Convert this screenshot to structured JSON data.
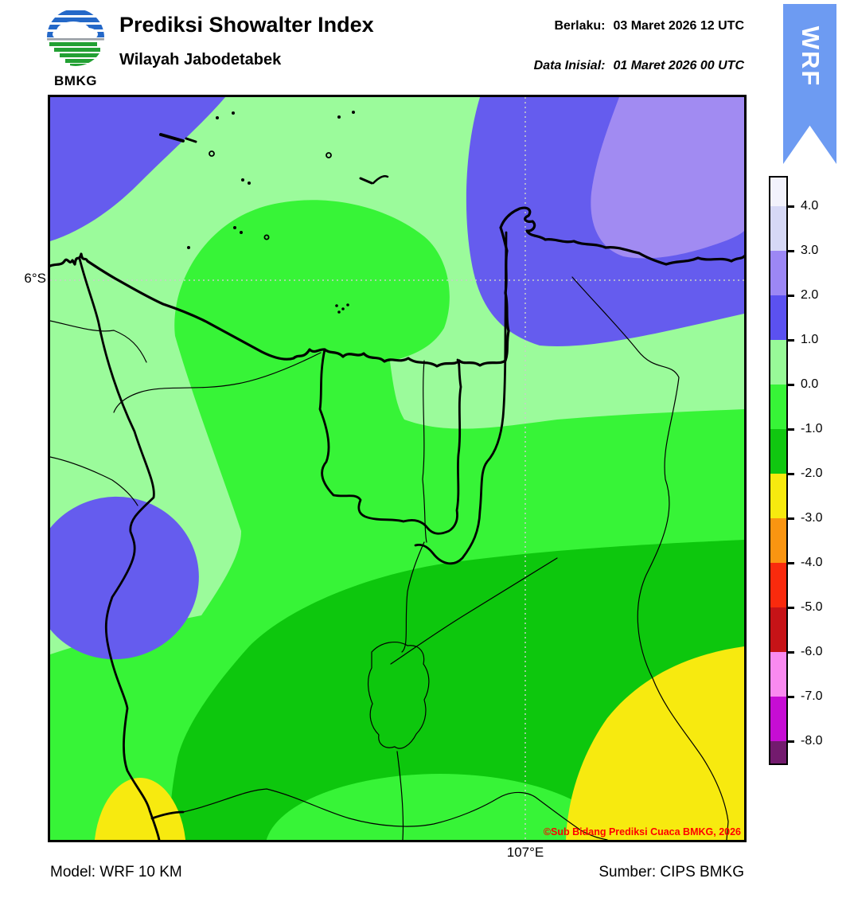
{
  "header": {
    "logo_text": "BMKG",
    "title": "Prediksi Showalter Index",
    "subtitle": "Wilayah Jabodetabek",
    "valid_label": "Berlaku:",
    "valid_value": "03 Maret 2026 12 UTC",
    "init_label": "Data Inisial:",
    "init_value": "01 Maret 2026 00 UTC"
  },
  "ribbon": {
    "text": "WRF",
    "color": "#6D9BF2"
  },
  "map": {
    "lat_label": "6°S",
    "lon_label": "107°E",
    "copyright": "©Sub Bidang Prediksi Cuaca BMKG, 2026",
    "copyright_color": "#FF0000"
  },
  "footer": {
    "model": "Model: WRF 10 KM",
    "source": "Sumber: CIPS BMKG"
  },
  "colorbar": {
    "tick_labels": [
      "4.0",
      "3.0",
      "2.0",
      "1.0",
      "0.0",
      "-1.0",
      "-2.0",
      "-3.0",
      "-4.0",
      "-5.0",
      "-6.0",
      "-7.0",
      "-8.0"
    ],
    "segment_colors": [
      "#F2F2FC",
      "#D6D8F6",
      "#9C87F5",
      "#5B51F0",
      "#98FA98",
      "#37F437",
      "#10C710",
      "#F7EA0F",
      "#FA9511",
      "#F92A0D",
      "#C61317",
      "#F98AF0",
      "#C60DD4",
      "#731B6E"
    ]
  },
  "palette": {
    "band_2_3": "#A18BF2",
    "band_1_2": "#655CEE",
    "band_0_1": "#9BFB9B",
    "band_m1_0": "#37F437",
    "band_m2_m1": "#0DC70D",
    "band_m3_m2": "#F7EA0F",
    "gridline": "#C8CFC8",
    "logo_blue": "#2468C8",
    "logo_green": "#22A033",
    "logo_gray": "#9AA0A6"
  }
}
